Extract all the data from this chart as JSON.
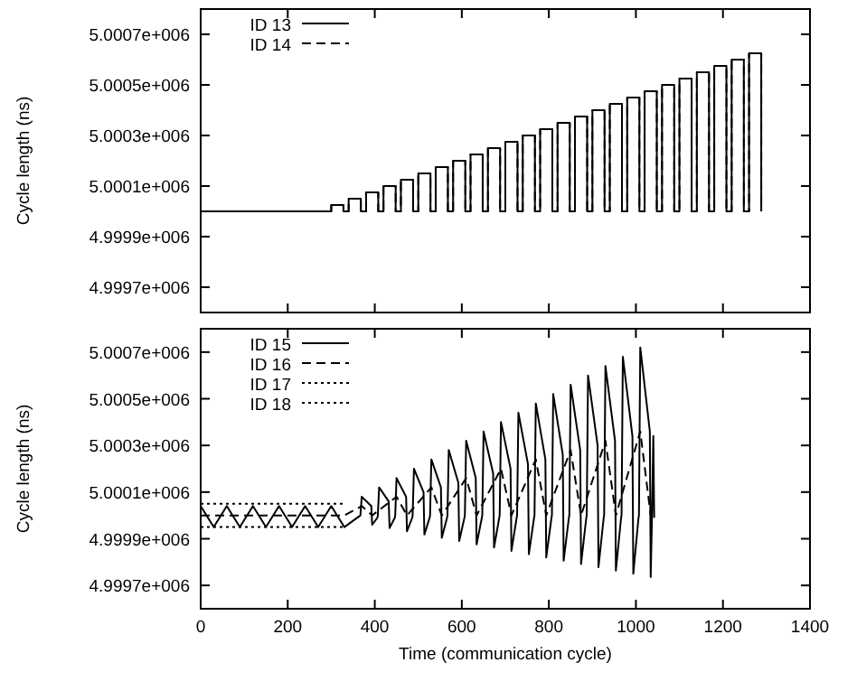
{
  "chart_data": [
    {
      "type": "step",
      "ylabel": "Cycle length (ns)",
      "xlim": [
        0,
        1400
      ],
      "xticks": [
        0,
        200,
        400,
        600,
        800,
        1000,
        1200,
        1400
      ],
      "tick_labels": "y",
      "ylim": [
        4999600,
        5000800
      ],
      "yticks": [
        {
          "value": 4999700,
          "label": "4.9997e+006"
        },
        {
          "value": 4999900,
          "label": "4.9999e+006"
        },
        {
          "value": 5000100,
          "label": "5.0001e+006"
        },
        {
          "value": 5000300,
          "label": "5.0003e+006"
        },
        {
          "value": 5000500,
          "label": "5.0005e+006"
        },
        {
          "value": 5000700,
          "label": "5.0007e+006"
        }
      ],
      "legend": "top left",
      "series": [
        {
          "name": "ID 13",
          "color": "#000000",
          "line_style": "solid",
          "x": [
            0,
            300,
            328,
            340,
            368,
            380,
            408,
            420,
            448,
            460,
            488,
            500,
            528,
            540,
            568,
            580,
            608,
            620,
            648,
            660,
            688,
            700,
            728,
            740,
            768,
            780,
            808,
            820,
            848,
            860,
            888,
            900,
            928,
            940,
            968,
            980,
            1008,
            1020,
            1048,
            1060,
            1088,
            1100,
            1128,
            1140,
            1168,
            1180,
            1208,
            1220,
            1248,
            1260,
            1288
          ],
          "values": [
            5000000,
            5000025,
            5000000,
            5000050,
            5000000,
            5000075,
            5000000,
            5000100,
            5000000,
            5000125,
            5000000,
            5000150,
            5000000,
            5000175,
            5000000,
            5000200,
            5000000,
            5000225,
            5000000,
            5000250,
            5000000,
            5000275,
            5000000,
            5000300,
            5000000,
            5000325,
            5000000,
            5000350,
            5000000,
            5000375,
            5000000,
            5000400,
            5000000,
            5000425,
            5000000,
            5000450,
            5000000,
            5000475,
            5000000,
            5000500,
            5000000,
            5000525,
            5000000,
            5000550,
            5000000,
            5000575,
            5000000,
            5000600,
            5000000,
            5000625,
            5000000
          ]
        },
        {
          "name": "ID 14",
          "color": "#000000",
          "line_style": "dashed",
          "x": [
            0,
            300,
            328,
            340,
            368,
            380,
            408,
            420,
            448,
            460,
            488,
            500,
            528,
            540,
            568,
            580,
            608,
            620,
            648,
            660,
            688,
            700,
            728,
            740,
            768,
            780,
            808,
            820,
            848,
            860,
            888,
            900,
            928,
            940,
            968,
            980,
            1008,
            1020,
            1048,
            1060,
            1088,
            1100,
            1128,
            1140,
            1168,
            1180,
            1208,
            1220,
            1248,
            1260,
            1288
          ],
          "values": [
            5000000,
            5000025,
            5000000,
            5000050,
            5000000,
            5000075,
            5000000,
            5000100,
            5000000,
            5000125,
            5000000,
            5000150,
            5000000,
            5000175,
            5000000,
            5000200,
            5000000,
            5000225,
            5000000,
            5000250,
            5000000,
            5000275,
            5000000,
            5000300,
            5000000,
            5000325,
            5000000,
            5000350,
            5000000,
            5000375,
            5000000,
            5000400,
            5000000,
            5000425,
            5000000,
            5000450,
            5000000,
            5000475,
            5000000,
            5000500,
            5000000,
            5000525,
            5000000,
            5000550,
            5000000,
            5000575,
            5000000,
            5000600,
            5000000,
            5000625,
            5000000
          ]
        }
      ]
    },
    {
      "type": "line",
      "xlabel": "Time (communication cycle)",
      "ylabel": "Cycle length (ns)",
      "xlim": [
        0,
        1400
      ],
      "xticks": [
        0,
        200,
        400,
        600,
        800,
        1000,
        1200,
        1400
      ],
      "ylim": [
        4999600,
        5000800
      ],
      "yticks": [
        {
          "value": 4999700,
          "label": "4.9997e+006"
        },
        {
          "value": 4999900,
          "label": "4.9999e+006"
        },
        {
          "value": 5000100,
          "label": "5.0001e+006"
        },
        {
          "value": 5000300,
          "label": "5.0003e+006"
        },
        {
          "value": 5000500,
          "label": "5.0005e+006"
        },
        {
          "value": 5000700,
          "label": "5.0007e+006"
        }
      ],
      "legend": "top left",
      "series": [
        {
          "name": "ID 15",
          "color": "#000000",
          "line_style": "solid",
          "x": [
            0,
            30,
            60,
            90,
            120,
            150,
            180,
            210,
            240,
            270,
            300,
            330,
            367,
            370,
            392,
            394,
            406,
            407,
            410,
            432,
            434,
            446,
            447,
            450,
            472,
            474,
            486,
            487,
            490,
            512,
            514,
            526,
            527,
            530,
            552,
            554,
            566,
            567,
            570,
            592,
            594,
            606,
            607,
            610,
            632,
            634,
            646,
            647,
            650,
            672,
            674,
            686,
            687,
            690,
            712,
            714,
            726,
            727,
            730,
            752,
            754,
            766,
            767,
            770,
            792,
            794,
            806,
            807,
            810,
            832,
            834,
            846,
            847,
            850,
            872,
            874,
            886,
            887,
            890,
            912,
            914,
            926,
            927,
            930,
            952,
            954,
            966,
            967,
            970,
            992,
            994,
            1006,
            1007,
            1010,
            1032,
            1034,
            1037,
            1040,
            1042
          ],
          "values": [
            5000040,
            4999950,
            5000040,
            4999950,
            5000040,
            4999950,
            5000040,
            4999950,
            5000040,
            4999950,
            5000040,
            4999950,
            5000000,
            5000080,
            5000040,
            4999960,
            4999990,
            5000000,
            5000120,
            5000060,
            4999946,
            4999990,
            5000000,
            5000160,
            5000080,
            4999932,
            4999990,
            5000000,
            5000200,
            5000100,
            4999918,
            4999990,
            5000000,
            5000240,
            5000120,
            4999904,
            4999990,
            5000000,
            5000280,
            5000140,
            4999890,
            4999990,
            5000000,
            5000320,
            5000160,
            4999876,
            4999990,
            5000000,
            5000360,
            5000180,
            4999862,
            4999990,
            5000000,
            5000400,
            5000200,
            4999848,
            4999990,
            5000000,
            5000440,
            5000220,
            4999834,
            4999990,
            5000000,
            5000480,
            5000240,
            4999820,
            4999990,
            5000000,
            5000520,
            5000260,
            4999806,
            4999990,
            5000000,
            5000560,
            5000280,
            4999792,
            4999990,
            5000000,
            5000600,
            5000300,
            4999778,
            4999990,
            5000000,
            5000640,
            5000320,
            4999764,
            4999990,
            5000000,
            5000680,
            5000340,
            4999750,
            4999990,
            5000000,
            5000720,
            5000360,
            4999736,
            5000000,
            5000340,
            4999990
          ]
        },
        {
          "name": "ID 16",
          "color": "#000000",
          "line_style": "dashed",
          "x": [
            0,
            330,
            370,
            394,
            450,
            474,
            530,
            554,
            610,
            634,
            690,
            714,
            770,
            794,
            850,
            874,
            930,
            954,
            1010,
            1034
          ],
          "values": [
            5000000,
            5000000,
            5000040,
            5000000,
            5000080,
            5000000,
            5000120,
            5000000,
            5000160,
            5000000,
            5000200,
            5000000,
            5000240,
            5000000,
            5000280,
            5000000,
            5000320,
            5000000,
            5000360,
            5000000
          ]
        },
        {
          "name": "ID 17",
          "color": "#000000",
          "line_style": "dotted",
          "x": [
            0,
            330
          ],
          "values": [
            5000050,
            5000050
          ]
        },
        {
          "name": "ID 18",
          "color": "#000000",
          "line_style": "dotted",
          "x": [
            0,
            330
          ],
          "values": [
            4999950,
            4999950
          ]
        }
      ]
    }
  ]
}
